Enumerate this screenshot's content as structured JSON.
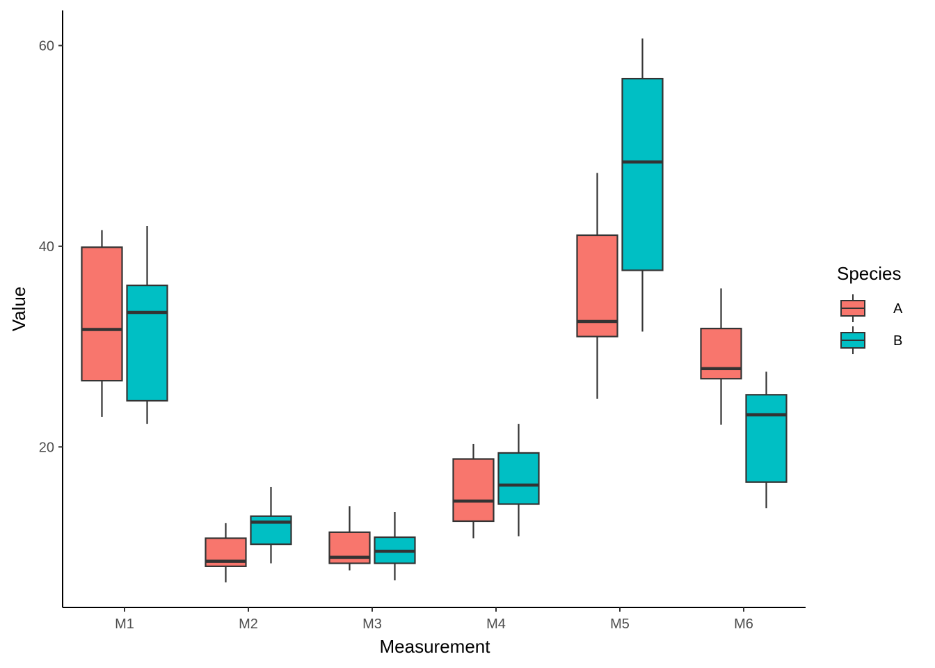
{
  "chart_data": {
    "type": "boxplot",
    "xlabel": "Measurement",
    "ylabel": "Value",
    "categories": [
      "M1",
      "M2",
      "M3",
      "M4",
      "M5",
      "M6"
    ],
    "ylim": [
      4,
      63.5
    ],
    "yticks": [
      20,
      40,
      60
    ],
    "grid": false,
    "legend": {
      "title": "Species",
      "position": "right"
    },
    "series": [
      {
        "name": "A",
        "color": "#F8766D",
        "boxes": [
          {
            "whisker_low": 23.0,
            "q1": 26.6,
            "median": 31.7,
            "q3": 39.9,
            "whisker_high": 41.6
          },
          {
            "whisker_low": 6.5,
            "q1": 8.1,
            "median": 8.6,
            "q3": 10.9,
            "whisker_high": 12.4
          },
          {
            "whisker_low": 7.7,
            "q1": 8.4,
            "median": 9.0,
            "q3": 11.5,
            "whisker_high": 14.1
          },
          {
            "whisker_low": 10.9,
            "q1": 12.6,
            "median": 14.6,
            "q3": 18.8,
            "whisker_high": 20.3
          },
          {
            "whisker_low": 24.8,
            "q1": 31.0,
            "median": 32.5,
            "q3": 41.1,
            "whisker_high": 47.3
          },
          {
            "whisker_low": 22.2,
            "q1": 26.8,
            "median": 27.8,
            "q3": 31.8,
            "whisker_high": 35.8
          }
        ]
      },
      {
        "name": "B",
        "color": "#00BFC4",
        "boxes": [
          {
            "whisker_low": 22.3,
            "q1": 24.6,
            "median": 33.4,
            "q3": 36.1,
            "whisker_high": 42.0
          },
          {
            "whisker_low": 8.4,
            "q1": 10.3,
            "median": 12.5,
            "q3": 13.1,
            "whisker_high": 16.0
          },
          {
            "whisker_low": 6.7,
            "q1": 8.4,
            "median": 9.6,
            "q3": 11.0,
            "whisker_high": 13.5
          },
          {
            "whisker_low": 11.1,
            "q1": 14.3,
            "median": 16.2,
            "q3": 19.4,
            "whisker_high": 22.3
          },
          {
            "whisker_low": 31.5,
            "q1": 37.6,
            "median": 48.4,
            "q3": 56.7,
            "whisker_high": 60.7
          },
          {
            "whisker_low": 13.9,
            "q1": 16.5,
            "median": 23.2,
            "q3": 25.2,
            "whisker_high": 27.5
          }
        ]
      }
    ]
  }
}
